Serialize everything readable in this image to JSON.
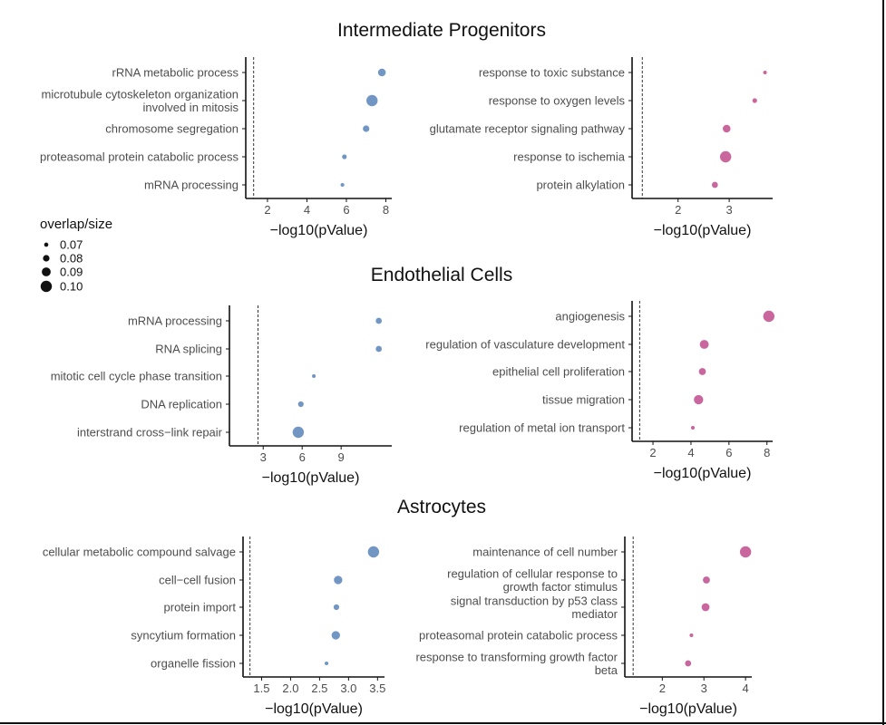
{
  "colors": {
    "blue": "#7196c4",
    "pink": "#c8669d",
    "axis": "#111111",
    "tick_text": "#4d4d4d"
  },
  "legend": {
    "title": "overlap/size",
    "entries": [
      "0.07",
      "0.08",
      "0.09",
      "0.10"
    ],
    "values": [
      0.07,
      0.08,
      0.09,
      0.1
    ]
  },
  "chart_data": [
    {
      "type": "scatter",
      "section": "Intermediate Progenitors",
      "title": "Intermediate Progenitors",
      "xlabel": "−log10(pValue)",
      "color": "blue",
      "xlim": [
        0.9,
        8.3
      ],
      "threshold": 1.3,
      "xticks": [
        2,
        4,
        6,
        8
      ],
      "xtick_labels": [
        "2",
        "4",
        "6",
        "8"
      ],
      "terms": [
        {
          "lines": [
            "rRNA metabolic process"
          ],
          "x": 7.8,
          "size": 0.085
        },
        {
          "lines": [
            "microtubule cytoskeleton organization",
            "involved in mitosis"
          ],
          "x": 7.3,
          "size": 0.1
        },
        {
          "lines": [
            "chromosome segregation"
          ],
          "x": 7.0,
          "size": 0.08
        },
        {
          "lines": [
            "proteasomal protein catabolic process"
          ],
          "x": 5.9,
          "size": 0.072
        },
        {
          "lines": [
            "mRNA processing"
          ],
          "x": 5.8,
          "size": 0.068
        }
      ]
    },
    {
      "type": "scatter",
      "section": "Intermediate Progenitors",
      "xlabel": "−log10(pValue)",
      "color": "pink",
      "xlim": [
        1.1,
        3.85
      ],
      "threshold": 1.3,
      "xticks": [
        2,
        3
      ],
      "xtick_labels": [
        "2",
        "3"
      ],
      "terms": [
        {
          "lines": [
            "response to toxic substance"
          ],
          "x": 3.7,
          "size": 0.068
        },
        {
          "lines": [
            "response to oxygen levels"
          ],
          "x": 3.5,
          "size": 0.072
        },
        {
          "lines": [
            "glutamate receptor signaling pathway"
          ],
          "x": 2.95,
          "size": 0.085
        },
        {
          "lines": [
            "response to ischemia"
          ],
          "x": 2.93,
          "size": 0.1
        },
        {
          "lines": [
            "protein alkylation"
          ],
          "x": 2.72,
          "size": 0.078
        }
      ]
    },
    {
      "type": "scatter",
      "section": "Endothelial Cells",
      "title": "Endothelial Cells",
      "xlabel": "−log10(pValue)",
      "color": "blue",
      "xlim": [
        0.4,
        12.9
      ],
      "threshold": 2.6,
      "xticks": [
        3,
        6,
        9
      ],
      "xtick_labels": [
        "3",
        "6",
        "9"
      ],
      "terms": [
        {
          "lines": [
            "mRNA processing"
          ],
          "x": 11.9,
          "size": 0.078
        },
        {
          "lines": [
            "RNA splicing"
          ],
          "x": 11.9,
          "size": 0.078
        },
        {
          "lines": [
            "mitotic cell cycle phase transition"
          ],
          "x": 6.9,
          "size": 0.068
        },
        {
          "lines": [
            "DNA replication"
          ],
          "x": 5.9,
          "size": 0.076
        },
        {
          "lines": [
            "interstrand cross−link repair"
          ],
          "x": 5.7,
          "size": 0.1
        }
      ]
    },
    {
      "type": "scatter",
      "section": "Endothelial Cells",
      "xlabel": "−log10(pValue)",
      "color": "pink",
      "xlim": [
        0.9,
        8.3
      ],
      "threshold": 1.3,
      "xticks": [
        2,
        4,
        6,
        8
      ],
      "xtick_labels": [
        "2",
        "4",
        "6",
        "8"
      ],
      "terms": [
        {
          "lines": [
            "angiogenesis"
          ],
          "x": 8.1,
          "size": 0.1
        },
        {
          "lines": [
            "regulation of vasculature development"
          ],
          "x": 4.7,
          "size": 0.09
        },
        {
          "lines": [
            "epithelial cell proliferation"
          ],
          "x": 4.6,
          "size": 0.082
        },
        {
          "lines": [
            "tissue migration"
          ],
          "x": 4.4,
          "size": 0.092
        },
        {
          "lines": [
            "regulation of metal ion transport"
          ],
          "x": 4.1,
          "size": 0.068
        }
      ]
    },
    {
      "type": "scatter",
      "section": "Astrocytes",
      "title": "Astrocytes",
      "xlabel": "−log10(pValue)",
      "color": "blue",
      "xlim": [
        1.18,
        3.62
      ],
      "threshold": 1.3,
      "xticks": [
        1.5,
        2.0,
        2.5,
        3.0,
        3.5
      ],
      "xtick_labels": [
        "1.5",
        "2.0",
        "2.5",
        "3.0",
        "3.5"
      ],
      "terms": [
        {
          "lines": [
            "cellular metabolic compound salvage"
          ],
          "x": 3.43,
          "size": 0.1
        },
        {
          "lines": [
            "cell−cell fusion"
          ],
          "x": 2.82,
          "size": 0.088
        },
        {
          "lines": [
            "protein import"
          ],
          "x": 2.79,
          "size": 0.076
        },
        {
          "lines": [
            "syncytium formation"
          ],
          "x": 2.78,
          "size": 0.088
        },
        {
          "lines": [
            "organelle fission"
          ],
          "x": 2.62,
          "size": 0.068
        }
      ]
    },
    {
      "type": "scatter",
      "section": "Astrocytes",
      "xlabel": "−log10(pValue)",
      "color": "pink",
      "xlim": [
        1.1,
        4.15
      ],
      "threshold": 1.3,
      "xticks": [
        2,
        3,
        4
      ],
      "xtick_labels": [
        "2",
        "3",
        "4"
      ],
      "terms": [
        {
          "lines": [
            "maintenance of cell number"
          ],
          "x": 4.0,
          "size": 0.1
        },
        {
          "lines": [
            "regulation of cellular response to",
            "growth factor stimulus"
          ],
          "x": 3.06,
          "size": 0.082
        },
        {
          "lines": [
            "signal transduction by p53 class",
            "mediator"
          ],
          "x": 3.04,
          "size": 0.086
        },
        {
          "lines": [
            "proteasomal protein catabolic process"
          ],
          "x": 2.7,
          "size": 0.068
        },
        {
          "lines": [
            "response to transforming growth factor",
            "beta"
          ],
          "x": 2.62,
          "size": 0.078
        }
      ]
    }
  ]
}
